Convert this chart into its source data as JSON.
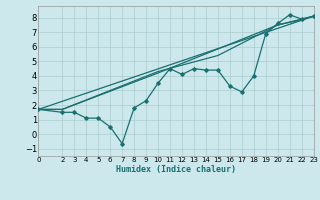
{
  "xlabel": "Humidex (Indice chaleur)",
  "bg_color": "#cce8ec",
  "grid_color": "#aacccc",
  "line_color": "#1a7070",
  "xlim": [
    0,
    23
  ],
  "ylim": [
    -1.5,
    8.8
  ],
  "yticks": [
    -1,
    0,
    1,
    2,
    3,
    4,
    5,
    6,
    7,
    8
  ],
  "xticks": [
    0,
    2,
    3,
    4,
    5,
    6,
    7,
    8,
    9,
    10,
    11,
    12,
    13,
    14,
    15,
    16,
    17,
    18,
    19,
    20,
    21,
    22,
    23
  ],
  "line1_x": [
    0,
    2,
    3,
    4,
    5,
    6,
    7,
    8,
    9,
    10,
    11,
    12,
    13,
    14,
    15,
    16,
    17,
    18,
    19,
    20,
    21,
    22,
    23
  ],
  "line1_y": [
    1.7,
    1.5,
    1.5,
    1.1,
    1.1,
    0.5,
    -0.65,
    1.8,
    2.3,
    3.5,
    4.5,
    4.1,
    4.5,
    4.4,
    4.4,
    3.3,
    2.9,
    4.0,
    6.9,
    7.6,
    8.2,
    7.9,
    8.1
  ],
  "line2_x": [
    0,
    2,
    10,
    15,
    20,
    22,
    23
  ],
  "line2_y": [
    1.7,
    1.7,
    4.3,
    5.4,
    7.5,
    7.85,
    8.1
  ],
  "line3_x": [
    0,
    2,
    10,
    20,
    23
  ],
  "line3_y": [
    1.7,
    1.7,
    4.2,
    7.5,
    8.1
  ],
  "line4_x": [
    0,
    23
  ],
  "line4_y": [
    1.7,
    8.1
  ]
}
